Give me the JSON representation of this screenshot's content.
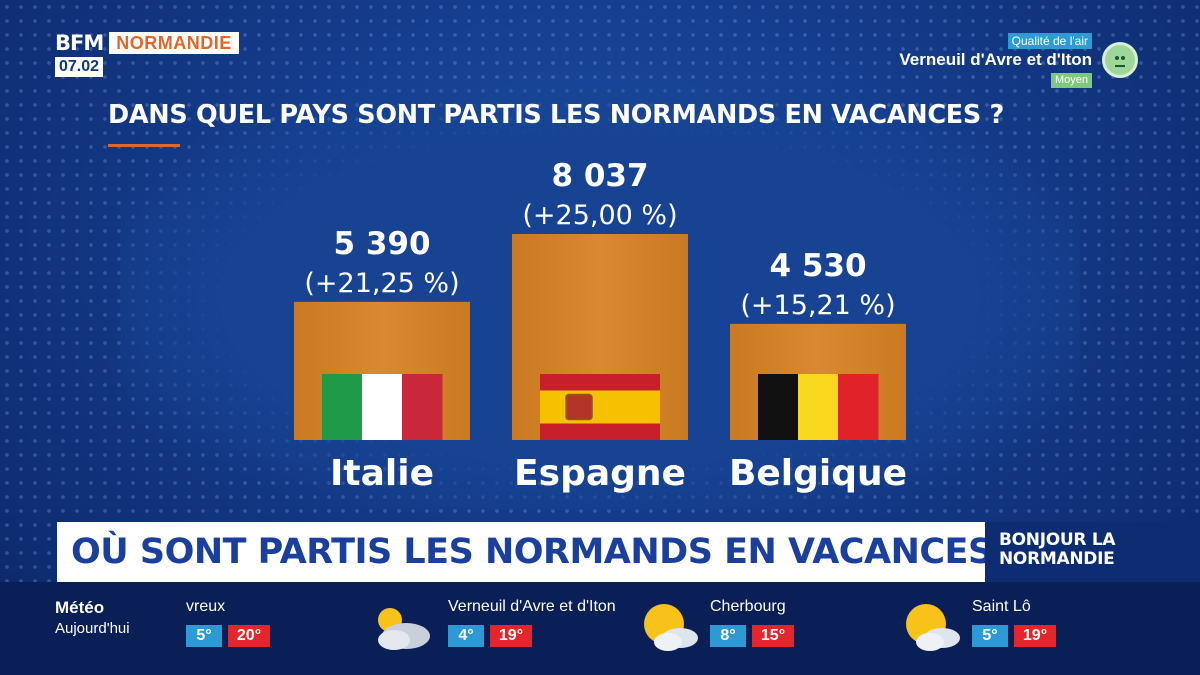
{
  "header": {
    "brand": "BFM",
    "region": "NORMANDIE",
    "time": "07.02"
  },
  "air_quality": {
    "label": "Qualité de l'air",
    "city": "Verneuil d'Avre et d'Iton",
    "level": "Moyen",
    "colors": {
      "tag": "#2f9bd3",
      "level": "#7dc97d"
    }
  },
  "chart_data": {
    "type": "bar",
    "title": "DANS QUEL PAYS SONT PARTIS LES NORMANDS EN VACANCES ?",
    "categories": [
      "Italie",
      "Espagne",
      "Belgique"
    ],
    "values": [
      5390,
      8037,
      4530
    ],
    "value_labels": [
      "5 390",
      "8 037",
      "4 530"
    ],
    "change_labels": [
      "(+21,25 %)",
      "(+25,00 %)",
      "(+15,21 %)"
    ],
    "flags": [
      "italy-flag",
      "spain-flag",
      "belgium-flag"
    ],
    "bar_color": "#d98a2e",
    "ylim": [
      0,
      8037
    ],
    "xlabel": "",
    "ylabel": ""
  },
  "banner": {
    "text": "OÙ SONT PARTIS LES NORMANDS EN VACANCES ?",
    "show_line1": "BONJOUR LA",
    "show_line2": "NORMANDIE"
  },
  "weather": {
    "title": "Météo",
    "subtitle": "Aujourd'hui",
    "cities": [
      {
        "name": "vreux",
        "min": "5°",
        "max": "20°",
        "icon": "sun-cloud-icon"
      },
      {
        "name": "Verneuil d'Avre et d'Iton",
        "min": "4°",
        "max": "19°",
        "icon": "cloudy-icon"
      },
      {
        "name": "Cherbourg",
        "min": "8°",
        "max": "15°",
        "icon": "sun-cloud-icon"
      },
      {
        "name": "Saint Lô",
        "min": "5°",
        "max": "19°",
        "icon": "sun-cloud-icon"
      }
    ]
  }
}
